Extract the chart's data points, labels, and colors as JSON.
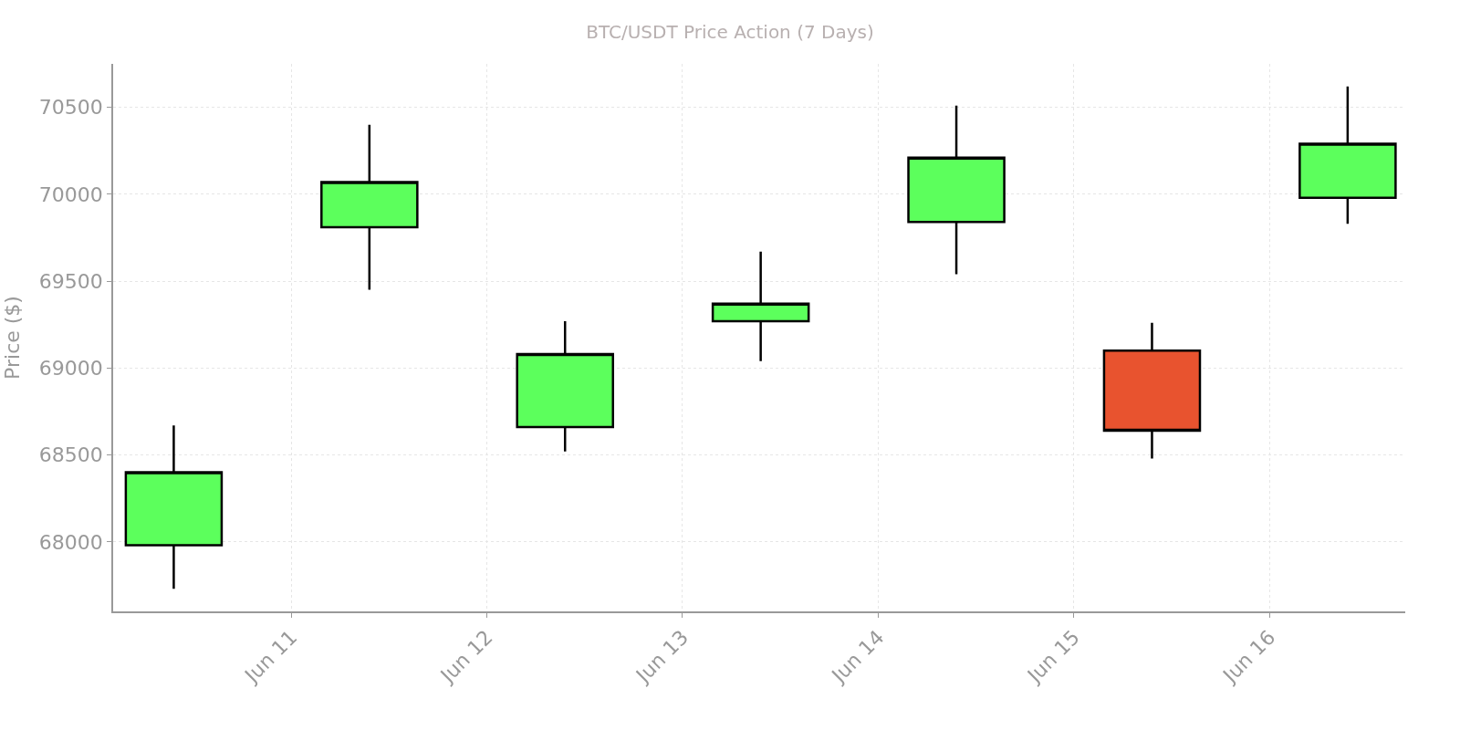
{
  "chart_data": {
    "type": "candlestick",
    "title": "BTC/USDT Price Action (7 Days)",
    "ylabel": "Price ($)",
    "x": [
      "--06-10T09:36",
      "--06-11T09:36",
      "--06-12T09:36",
      "--06-13T09:36",
      "--06-14T09:36",
      "--06-15T09:36",
      "--06-16T09:36"
    ],
    "ohlc": [
      [
        67980,
        68670,
        67730,
        68400
      ],
      [
        69810,
        70400,
        69450,
        70070
      ],
      [
        68660,
        69270,
        68520,
        69080
      ],
      [
        69270,
        69670,
        69040,
        69370
      ],
      [
        69840,
        70510,
        69540,
        70210
      ],
      [
        69100,
        69260,
        68480,
        68640
      ],
      [
        69980,
        70620,
        69830,
        70290
      ]
    ],
    "colors": [
      "#5cff5c",
      "#5cff5c",
      "#5cff5c",
      "#5cff5c",
      "#5cff5c",
      "#e8532f",
      "#5cff5c"
    ],
    "xlim": [
      "--06-10T02:10",
      "--06-16T16:40"
    ],
    "xticks": [
      {
        "value": "--06-11",
        "label": "Jun 11"
      },
      {
        "value": "--06-12",
        "label": "Jun 12"
      },
      {
        "value": "--06-13",
        "label": "Jun 13"
      },
      {
        "value": "--06-14",
        "label": "Jun 14"
      },
      {
        "value": "--06-15",
        "label": "Jun 15"
      },
      {
        "value": "--06-16",
        "label": "Jun 16"
      }
    ],
    "ylim": [
      67600,
      70750
    ],
    "yticks": [
      68000,
      68500,
      69000,
      69500,
      70000,
      70500
    ],
    "grid": true,
    "legend": false
  }
}
